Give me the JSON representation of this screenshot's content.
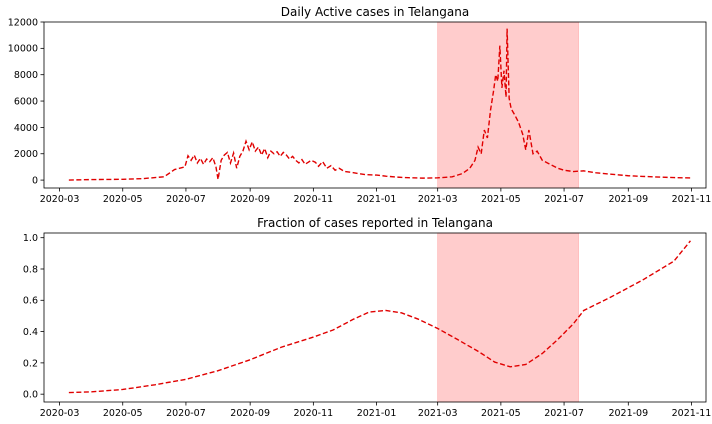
{
  "chart_data": [
    {
      "type": "line",
      "title": "Daily Active cases in Telangana",
      "xlabel": "",
      "ylabel": "",
      "xlim": [
        "2020-02-15",
        "2021-11-15"
      ],
      "ylim": [
        -600,
        12000
      ],
      "x_ticks": [
        "2020-03",
        "2020-05",
        "2020-07",
        "2020-09",
        "2020-11",
        "2021-01",
        "2021-03",
        "2021-05",
        "2021-07",
        "2021-09",
        "2021-11"
      ],
      "y_ticks": [
        0,
        2000,
        4000,
        6000,
        8000,
        10000,
        12000
      ],
      "shaded_region": {
        "from": "2021-03-01",
        "to": "2021-07-15",
        "color": "#ff0000"
      },
      "series": [
        {
          "color": "#e00000",
          "style": "dashed",
          "points": [
            [
              "2020-03-10",
              5
            ],
            [
              "2020-04-01",
              40
            ],
            [
              "2020-05-01",
              60
            ],
            [
              "2020-05-20",
              110
            ],
            [
              "2020-06-10",
              250
            ],
            [
              "2020-06-20",
              800
            ],
            [
              "2020-06-30",
              1000
            ],
            [
              "2020-07-03",
              1850
            ],
            [
              "2020-07-06",
              1500
            ],
            [
              "2020-07-09",
              1900
            ],
            [
              "2020-07-12",
              1300
            ],
            [
              "2020-07-15",
              1650
            ],
            [
              "2020-07-18",
              1200
            ],
            [
              "2020-07-21",
              1600
            ],
            [
              "2020-07-24",
              1400
            ],
            [
              "2020-07-27",
              1700
            ],
            [
              "2020-07-30",
              1000
            ],
            [
              "2020-08-01",
              50
            ],
            [
              "2020-08-04",
              1500
            ],
            [
              "2020-08-07",
              1900
            ],
            [
              "2020-08-10",
              2100
            ],
            [
              "2020-08-13",
              1300
            ],
            [
              "2020-08-16",
              2050
            ],
            [
              "2020-08-19",
              900
            ],
            [
              "2020-08-22",
              1800
            ],
            [
              "2020-08-25",
              2200
            ],
            [
              "2020-08-28",
              2950
            ],
            [
              "2020-08-31",
              2300
            ],
            [
              "2020-09-03",
              2900
            ],
            [
              "2020-09-06",
              2200
            ],
            [
              "2020-09-09",
              2500
            ],
            [
              "2020-09-12",
              1900
            ],
            [
              "2020-09-15",
              2400
            ],
            [
              "2020-09-18",
              1700
            ],
            [
              "2020-09-21",
              2200
            ],
            [
              "2020-09-24",
              2000
            ],
            [
              "2020-09-27",
              2150
            ],
            [
              "2020-09-30",
              1800
            ],
            [
              "2020-10-03",
              2100
            ],
            [
              "2020-10-06",
              1900
            ],
            [
              "2020-10-09",
              1600
            ],
            [
              "2020-10-12",
              1800
            ],
            [
              "2020-10-15",
              1500
            ],
            [
              "2020-10-18",
              1300
            ],
            [
              "2020-10-21",
              1550
            ],
            [
              "2020-10-24",
              1200
            ],
            [
              "2020-10-27",
              1350
            ],
            [
              "2020-10-30",
              1500
            ],
            [
              "2020-11-03",
              1350
            ],
            [
              "2020-11-06",
              1050
            ],
            [
              "2020-11-10",
              1400
            ],
            [
              "2020-11-14",
              900
            ],
            [
              "2020-11-18",
              1100
            ],
            [
              "2020-11-22",
              750
            ],
            [
              "2020-11-26",
              900
            ],
            [
              "2020-12-01",
              650
            ],
            [
              "2020-12-07",
              600
            ],
            [
              "2020-12-14",
              500
            ],
            [
              "2020-12-21",
              420
            ],
            [
              "2021-01-01",
              380
            ],
            [
              "2021-01-10",
              300
            ],
            [
              "2021-01-20",
              230
            ],
            [
              "2021-02-01",
              180
            ],
            [
              "2021-02-15",
              150
            ],
            [
              "2021-03-01",
              170
            ],
            [
              "2021-03-15",
              250
            ],
            [
              "2021-03-25",
              500
            ],
            [
              "2021-04-01",
              900
            ],
            [
              "2021-04-06",
              1500
            ],
            [
              "2021-04-09",
              2500
            ],
            [
              "2021-04-12",
              2000
            ],
            [
              "2021-04-15",
              3800
            ],
            [
              "2021-04-18",
              3200
            ],
            [
              "2021-04-21",
              5300
            ],
            [
              "2021-04-24",
              6800
            ],
            [
              "2021-04-26",
              8000
            ],
            [
              "2021-04-28",
              7500
            ],
            [
              "2021-04-30",
              10200
            ],
            [
              "2021-05-02",
              7000
            ],
            [
              "2021-05-04",
              8300
            ],
            [
              "2021-05-06",
              6300
            ],
            [
              "2021-05-07",
              11500
            ],
            [
              "2021-05-09",
              6200
            ],
            [
              "2021-05-11",
              5400
            ],
            [
              "2021-05-14",
              5000
            ],
            [
              "2021-05-18",
              4400
            ],
            [
              "2021-05-22",
              3500
            ],
            [
              "2021-05-25",
              2300
            ],
            [
              "2021-05-28",
              3800
            ],
            [
              "2021-06-01",
              2000
            ],
            [
              "2021-06-05",
              2200
            ],
            [
              "2021-06-10",
              1500
            ],
            [
              "2021-06-15",
              1300
            ],
            [
              "2021-06-20",
              1100
            ],
            [
              "2021-06-25",
              900
            ],
            [
              "2021-07-01",
              750
            ],
            [
              "2021-07-10",
              650
            ],
            [
              "2021-07-20",
              700
            ],
            [
              "2021-08-01",
              550
            ],
            [
              "2021-08-15",
              450
            ],
            [
              "2021-09-01",
              330
            ],
            [
              "2021-09-15",
              280
            ],
            [
              "2021-10-01",
              230
            ],
            [
              "2021-10-15",
              190
            ],
            [
              "2021-10-31",
              160
            ]
          ]
        }
      ]
    },
    {
      "type": "line",
      "title": "Fraction of cases reported in Telangana",
      "xlabel": "",
      "ylabel": "",
      "xlim": [
        "2020-02-15",
        "2021-11-15"
      ],
      "ylim": [
        -0.05,
        1.03
      ],
      "x_ticks": [
        "2020-03",
        "2020-05",
        "2020-07",
        "2020-09",
        "2020-11",
        "2021-01",
        "2021-03",
        "2021-05",
        "2021-07",
        "2021-09",
        "2021-11"
      ],
      "y_ticks": [
        0.0,
        0.2,
        0.4,
        0.6,
        0.8,
        1.0
      ],
      "y_tick_labels": [
        "0.0",
        "0.2",
        "0.4",
        "0.6",
        "0.8",
        "1.0"
      ],
      "shaded_region": {
        "from": "2021-03-01",
        "to": "2021-07-15",
        "color": "#ff0000"
      },
      "series": [
        {
          "color": "#e00000",
          "style": "dashed",
          "points": [
            [
              "2020-03-10",
              0.01
            ],
            [
              "2020-04-01",
              0.015
            ],
            [
              "2020-05-01",
              0.03
            ],
            [
              "2020-06-01",
              0.06
            ],
            [
              "2020-07-01",
              0.095
            ],
            [
              "2020-08-01",
              0.15
            ],
            [
              "2020-09-01",
              0.22
            ],
            [
              "2020-10-01",
              0.3
            ],
            [
              "2020-11-01",
              0.365
            ],
            [
              "2020-11-20",
              0.41
            ],
            [
              "2020-12-10",
              0.48
            ],
            [
              "2020-12-25",
              0.525
            ],
            [
              "2021-01-10",
              0.535
            ],
            [
              "2021-01-25",
              0.52
            ],
            [
              "2021-02-10",
              0.48
            ],
            [
              "2021-03-01",
              0.42
            ],
            [
              "2021-03-20",
              0.35
            ],
            [
              "2021-04-10",
              0.27
            ],
            [
              "2021-04-25",
              0.205
            ],
            [
              "2021-05-10",
              0.175
            ],
            [
              "2021-05-25",
              0.19
            ],
            [
              "2021-06-10",
              0.26
            ],
            [
              "2021-06-25",
              0.35
            ],
            [
              "2021-07-10",
              0.45
            ],
            [
              "2021-07-20",
              0.535
            ],
            [
              "2021-08-15",
              0.62
            ],
            [
              "2021-09-15",
              0.73
            ],
            [
              "2021-10-15",
              0.85
            ],
            [
              "2021-10-31",
              0.98
            ]
          ]
        }
      ]
    }
  ]
}
